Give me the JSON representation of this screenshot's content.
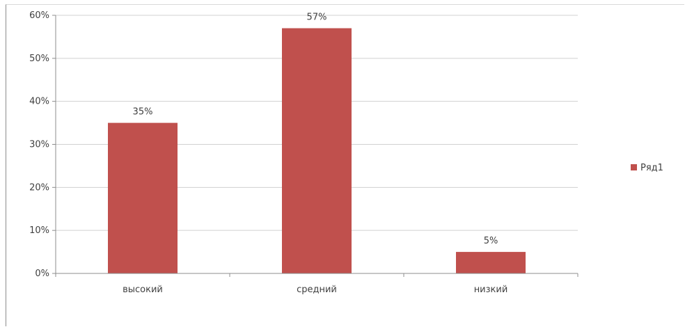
{
  "chart_data": {
    "type": "bar",
    "categories": [
      "высокий",
      "средний",
      "низкий"
    ],
    "series": [
      {
        "name": "Ряд1",
        "values": [
          35,
          57,
          5
        ],
        "color": "#c0504d"
      }
    ],
    "data_labels": [
      "35%",
      "57%",
      "5%"
    ],
    "ylim": [
      0,
      60
    ],
    "yticks": [
      0,
      10,
      20,
      30,
      40,
      50,
      60
    ],
    "ytick_labels": [
      "0%",
      "10%",
      "20%",
      "30%",
      "40%",
      "50%",
      "60%"
    ],
    "gridlines": true,
    "legend_position": "right",
    "title": "",
    "xlabel": "",
    "ylabel": ""
  }
}
